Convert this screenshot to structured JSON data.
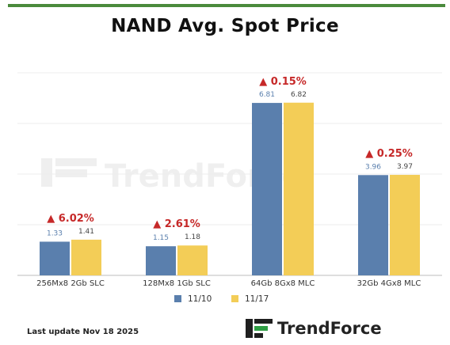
{
  "title": "NAND Avg. Spot Price",
  "chart_data": {
    "type": "bar",
    "categories": [
      "256Mx8 2Gb SLC",
      "128Mx8 1Gb SLC",
      "64Gb 8Gx8 MLC",
      "32Gb 4Gx8 MLC"
    ],
    "series": [
      {
        "name": "11/10",
        "values": [
          1.33,
          1.15,
          6.81,
          3.96
        ],
        "labels": [
          "1.33",
          "1.15",
          "6.81",
          "3.96"
        ],
        "color": "#5a7fad"
      },
      {
        "name": "11/17",
        "values": [
          1.41,
          1.18,
          6.82,
          3.97
        ],
        "labels": [
          "1.41",
          "1.18",
          "6.82",
          "3.97"
        ],
        "color": "#f3cd57"
      }
    ],
    "changes": [
      "▲ 6.02%",
      "▲ 2.61%",
      "▲ 0.15%",
      "▲ 0.25%"
    ],
    "change_color": "#c62828",
    "ylim": [
      0,
      8
    ],
    "grid": true,
    "legend": "bottom"
  },
  "watermark": "TrendForce",
  "footer": {
    "last_update": "Last update Nov 18  2025",
    "brand": "TrendForce"
  },
  "icons": {
    "brand_logo": "trendforce-logo-icon"
  }
}
